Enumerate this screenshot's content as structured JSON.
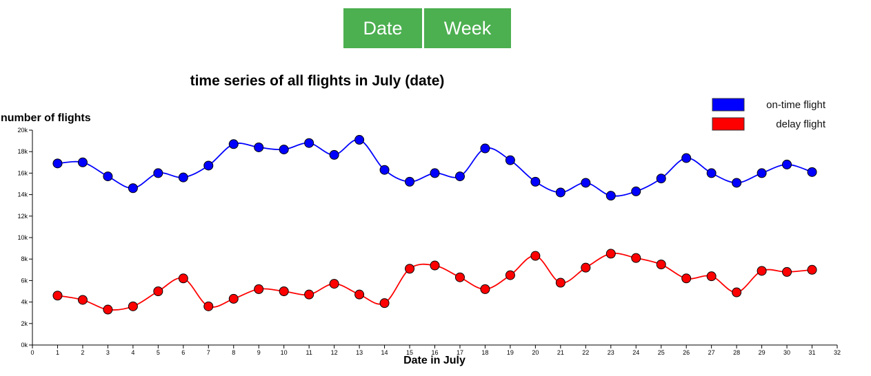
{
  "buttons": [
    {
      "label": "Date"
    },
    {
      "label": "Week"
    }
  ],
  "chart_data": {
    "type": "line",
    "title": "time series of all flights in July (date)",
    "xlabel": "Date in July",
    "ylabel": "number of flights",
    "xlim": [
      0,
      32
    ],
    "ylim": [
      0,
      20000
    ],
    "x_ticks": [
      "0",
      "1",
      "2",
      "3",
      "4",
      "5",
      "6",
      "7",
      "8",
      "9",
      "10",
      "11",
      "12",
      "13",
      "14",
      "15",
      "16",
      "17",
      "18",
      "19",
      "20",
      "21",
      "22",
      "23",
      "24",
      "25",
      "26",
      "27",
      "28",
      "29",
      "30",
      "31",
      "32"
    ],
    "y_ticks": [
      "0k",
      "2k",
      "4k",
      "6k",
      "8k",
      "10k",
      "12k",
      "14k",
      "16k",
      "18k",
      "20k"
    ],
    "x": [
      1,
      2,
      3,
      4,
      5,
      6,
      7,
      8,
      9,
      10,
      11,
      12,
      13,
      14,
      15,
      16,
      17,
      18,
      19,
      20,
      21,
      22,
      23,
      24,
      25,
      26,
      27,
      28,
      29,
      30,
      31
    ],
    "series": [
      {
        "name": "on-time flight",
        "color": "#0000ff",
        "values": [
          16900,
          17000,
          15700,
          14600,
          16000,
          15600,
          16700,
          18700,
          18400,
          18200,
          18800,
          17700,
          19100,
          16300,
          15200,
          16000,
          15700,
          18300,
          17200,
          15200,
          14200,
          15100,
          13900,
          14300,
          15500,
          17400,
          16000,
          15100,
          16000,
          16800,
          16100
        ]
      },
      {
        "name": "delay flight",
        "color": "#ff0000",
        "values": [
          4600,
          4200,
          3300,
          3600,
          5000,
          6200,
          3600,
          4300,
          5200,
          5000,
          4700,
          5700,
          4700,
          3900,
          7100,
          7400,
          6300,
          5200,
          6500,
          8300,
          5800,
          7200,
          8500,
          8100,
          7500,
          6200,
          6400,
          4900,
          6900,
          6800,
          7000
        ]
      }
    ],
    "legend": "top-right",
    "grid": false
  }
}
